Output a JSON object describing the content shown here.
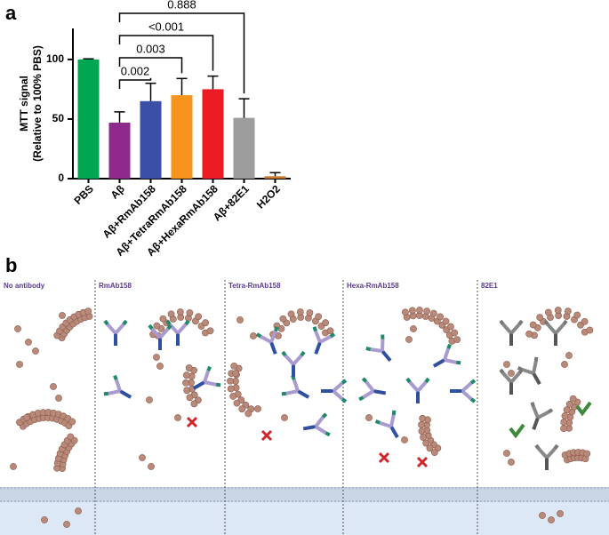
{
  "panel_a_label": "a",
  "chart_data": {
    "type": "bar",
    "ylabel": [
      "MTT signal",
      "(Relative to 100% PBS)"
    ],
    "categories": [
      "PBS",
      "Aβ",
      "Aβ+RmAb158",
      "Aβ+TetraRmAb158",
      "Aβ+HexaRmAb158",
      "Aβ+82E1",
      "H2O2"
    ],
    "values": [
      100,
      47,
      65,
      70,
      75,
      51,
      2
    ],
    "errors": [
      0.5,
      9,
      15,
      14,
      11,
      16,
      3
    ],
    "colors": [
      "#00a651",
      "#8e2a8e",
      "#3a4fa6",
      "#f7941d",
      "#ed1c24",
      "#9d9d9d",
      "#c8782a"
    ],
    "ylim": [
      0,
      126
    ],
    "yticks": [
      0,
      50,
      100
    ],
    "comparisons": [
      {
        "pair": [
          1,
          2
        ],
        "label": "0.002"
      },
      {
        "pair": [
          1,
          3
        ],
        "label": "0.003"
      },
      {
        "pair": [
          1,
          4
        ],
        "label": "<0.001"
      },
      {
        "pair": [
          1,
          5
        ],
        "label": "0.888"
      }
    ]
  },
  "panel_b_label": "b",
  "diagram": {
    "panels": [
      "No antibody",
      "RmAb158",
      "Tetra-RmAb158",
      "Hexa-RmAb158",
      "82E1"
    ]
  }
}
